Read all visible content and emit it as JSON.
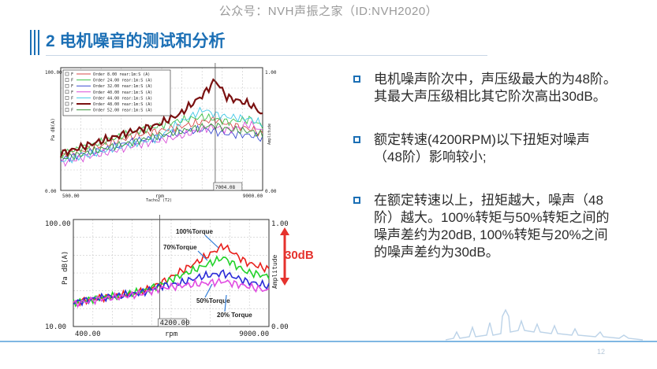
{
  "watermark": "公众号：NVH声振之家（ID:NVH2020）",
  "slide": {
    "title": "2 电机噪音的测试和分析",
    "page_number": "12",
    "accent": "#1b6fb5"
  },
  "bullets": [
    "电机噪声阶次中，声压级最大的为48阶。其最大声压级相比其它阶次高出30dB。",
    "额定转速(4200RPM)以下扭矩对噪声（48阶）影响较小;",
    "在额定转速以上，扭矩越大，噪声（48阶）越大。100%转矩与50%转矩之间的噪声差约为20dB, 100%转矩与20%之间的噪声差约为30dB。"
  ],
  "annotation": "30dB",
  "chart_data": [
    {
      "type": "line",
      "title": "",
      "xlabel": "rpm",
      "xlabel2": "Tacho2 (T2)",
      "ylabel": "Pa dB(A)",
      "ylabel_right": "Amplitude",
      "xlim": [
        500,
        9000
      ],
      "ylim_top_label": "100.00",
      "ylim_bottom_label": "0.00",
      "right_top_label": "1.00",
      "right_bottom_label": "0.00",
      "x_tick_labels": [
        "500.00",
        "9000.00"
      ],
      "cursor_label": "7004.08",
      "cursor_x": 7004,
      "legend_position": "top-left",
      "series": [
        {
          "name": "Order 8.00 rear:1m:S (A)",
          "color": "#d94a4a",
          "x": [
            500,
            1500,
            2500,
            3500,
            4500,
            5500,
            6500,
            7000,
            7500,
            8500,
            9000
          ],
          "y": [
            28,
            33,
            38,
            44,
            48,
            52,
            56,
            58,
            54,
            50,
            46
          ]
        },
        {
          "name": "Order 24.00 rear:1m:S (A)",
          "color": "#3fc24a",
          "x": [
            500,
            1500,
            2500,
            3500,
            4500,
            5500,
            6500,
            7000,
            7500,
            8500,
            9000
          ],
          "y": [
            30,
            35,
            41,
            47,
            52,
            57,
            60,
            58,
            56,
            58,
            52
          ]
        },
        {
          "name": "Order 32.00 rear:1m:S (A)",
          "color": "#3a4cd0",
          "x": [
            500,
            1500,
            2500,
            3500,
            4500,
            5500,
            6500,
            7000,
            7500,
            8500,
            9000
          ],
          "y": [
            25,
            30,
            34,
            40,
            43,
            47,
            50,
            48,
            46,
            45,
            42
          ]
        },
        {
          "name": "Order 40.00 rear:1m:S (A)",
          "color": "#d84fd8",
          "x": [
            500,
            1500,
            2500,
            3500,
            4500,
            5500,
            6500,
            7000,
            7500,
            8500,
            9000
          ],
          "y": [
            22,
            27,
            31,
            36,
            40,
            44,
            50,
            52,
            49,
            54,
            48
          ]
        },
        {
          "name": "Order 44.00 rear:1m:S (A)",
          "color": "#41c8e6",
          "x": [
            500,
            1500,
            2500,
            3500,
            4500,
            5500,
            6500,
            7000,
            7500,
            8500,
            9000
          ],
          "y": [
            24,
            28,
            33,
            38,
            42,
            55,
            66,
            62,
            60,
            58,
            54
          ]
        },
        {
          "name": "Order 48.00 rear:1m:S (A)",
          "color": "#7a1010",
          "x": [
            500,
            1500,
            2500,
            3500,
            4500,
            5500,
            6500,
            7000,
            7500,
            8500,
            9000
          ],
          "y": [
            30,
            36,
            42,
            48,
            53,
            62,
            78,
            90,
            76,
            70,
            62
          ]
        },
        {
          "name": "Order 52.00 rear:1m:S (A)",
          "color": "#37963a",
          "x": [
            500,
            1500,
            2500,
            3500,
            4500,
            5500,
            6500,
            7000,
            7500,
            8500,
            9000
          ],
          "y": [
            26,
            30,
            35,
            39,
            44,
            48,
            52,
            53,
            50,
            48,
            45
          ]
        }
      ]
    },
    {
      "type": "line",
      "title": "",
      "xlabel": "rpm",
      "ylabel": "Pa dB(A)",
      "ylabel_right": "Amplitude",
      "xlim": [
        400,
        9000
      ],
      "ylim_top_label": "100.00",
      "ylim_bottom_label": "10.00",
      "right_top_label": "1.00",
      "right_bottom_label": "0.00",
      "x_tick_labels": [
        "400.00",
        "9000.00"
      ],
      "cursor_label": "4200.00",
      "cursor_x": 4200,
      "series": [
        {
          "name": "100%Torque",
          "color": "#e8201c",
          "x": [
            400,
            1500,
            2500,
            3500,
            4200,
            5000,
            6000,
            7000,
            8000,
            9000
          ],
          "y": [
            30,
            34,
            36,
            40,
            46,
            55,
            66,
            78,
            64,
            58
          ]
        },
        {
          "name": "70%Torque",
          "color": "#22d22a",
          "x": [
            400,
            1500,
            2500,
            3500,
            4200,
            5000,
            6000,
            7000,
            8000,
            9000
          ],
          "y": [
            30,
            34,
            36,
            40,
            45,
            52,
            60,
            68,
            56,
            52
          ]
        },
        {
          "name": "50%Torque",
          "color": "#2a2ad8",
          "x": [
            400,
            1500,
            2500,
            3500,
            4200,
            5000,
            6000,
            7000,
            8000,
            9000
          ],
          "y": [
            30,
            34,
            36,
            39,
            44,
            46,
            52,
            55,
            48,
            44
          ]
        },
        {
          "name": "20% Torque",
          "color": "#e14be1",
          "x": [
            400,
            1500,
            2500,
            3500,
            4200,
            5000,
            6000,
            7000,
            8000,
            9000
          ],
          "y": [
            29,
            33,
            35,
            38,
            42,
            44,
            46,
            48,
            44,
            40
          ]
        }
      ]
    }
  ]
}
